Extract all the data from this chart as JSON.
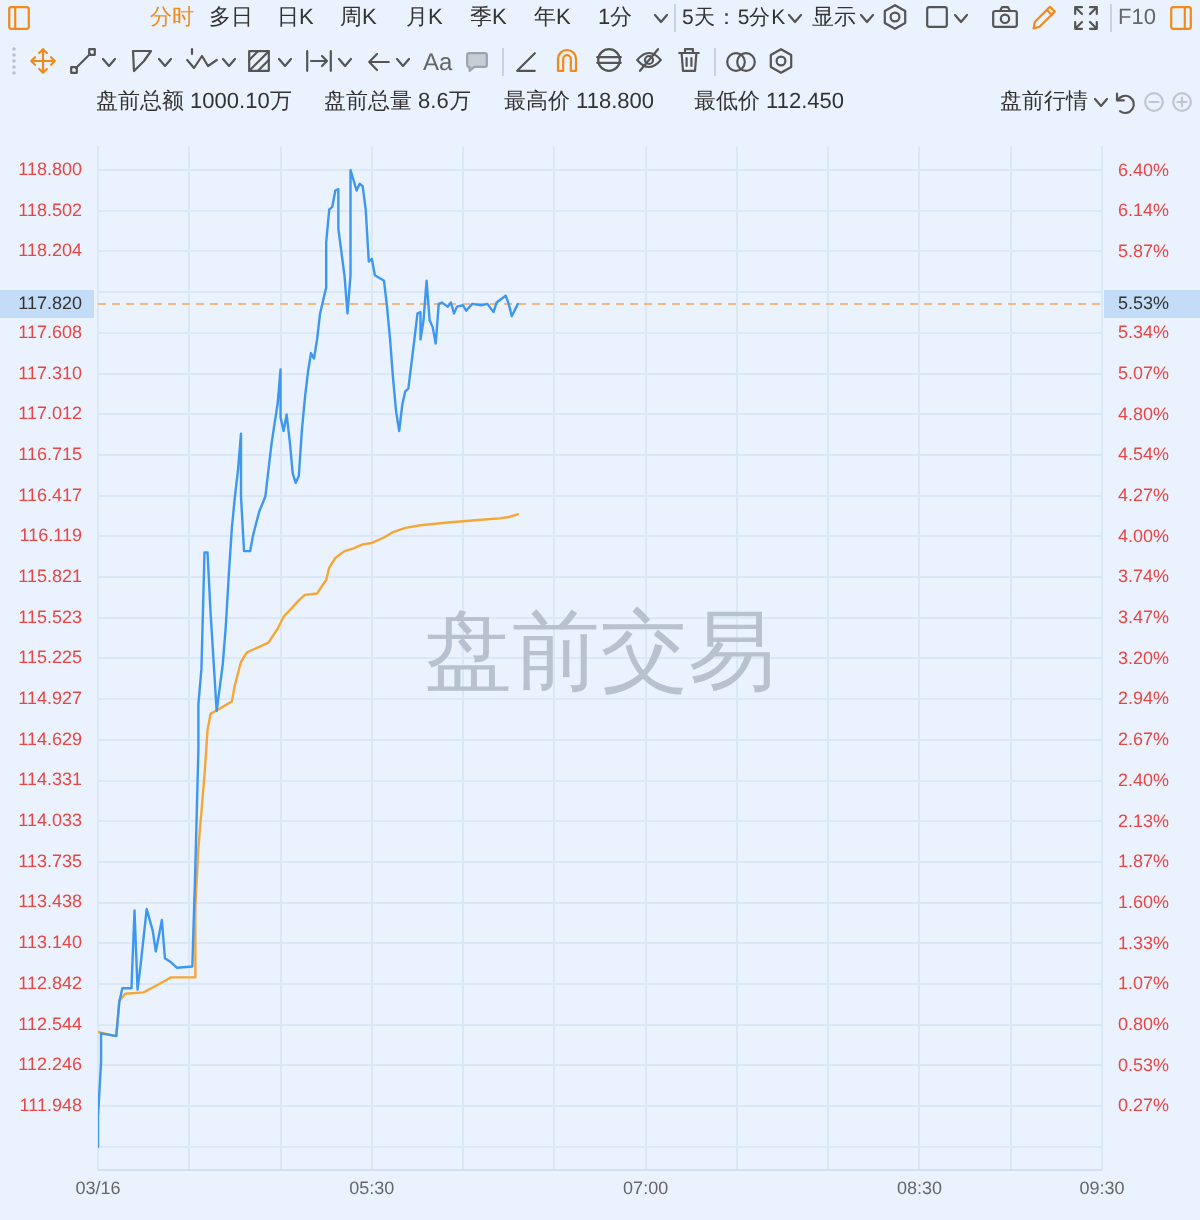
{
  "chart_data": {
    "type": "line",
    "annotations": [
      "分时",
      "多日",
      "日K",
      "周K",
      "月K",
      "季K",
      "年K",
      "1分",
      "5天：5分K",
      "显示",
      "F10",
      "Aa",
      "盘前总额 1000.10万",
      "盘前总量 8.6万",
      "最高价 118.800",
      "最低价 112.450",
      "盘前行情",
      "盘前交易",
      {
        "text": "5.53%",
        "x": "--03-16T09:30",
        "y": 117.82
      }
    ],
    "series": [
      {
        "color": "#3d97f0",
        "x": [
          "--03-16T04:00",
          "--03-16T04:00",
          "--03-16T04:01",
          "--03-16T04:01",
          "--03-16T04:06",
          "--03-16T04:07",
          "--03-16T04:08",
          "--03-16T04:11",
          "--03-16T04:12",
          "--03-16T04:13",
          "--03-16T04:14",
          "--03-16T04:16",
          "--03-16T04:18",
          "--03-16T04:19",
          "--03-16T04:21",
          "--03-16T04:22",
          "--03-16T04:24",
          "--03-16T04:26",
          "--03-16T04:31",
          "--03-16T04:32",
          "--03-16T04:33",
          "--03-16T04:33",
          "--03-16T04:34",
          "--03-16T04:35",
          "--03-16T04:36",
          "--03-16T04:37",
          "--03-16T04:39",
          "--03-16T04:41",
          "--03-16T04:42",
          "--03-16T04:43",
          "--03-16T04:44",
          "--03-16T04:45",
          "--03-16T04:46",
          "--03-16T04:47",
          "--03-16T04:47",
          "--03-16T04:48",
          "--03-16T04:50",
          "--03-16T04:51",
          "--03-16T04:53",
          "--03-16T04:55",
          "--03-16T04:56",
          "--03-16T04:57",
          "--03-16T04:58",
          "--03-16T04:59",
          "--03-16T05:00",
          "--03-16T05:00",
          "--03-16T05:01",
          "--03-16T05:02",
          "--03-16T05:03",
          "--03-16T05:04",
          "--03-16T05:05",
          "--03-16T05:06",
          "--03-16T05:07",
          "--03-16T05:08",
          "--03-16T05:09",
          "--03-16T05:10",
          "--03-16T05:11",
          "--03-16T05:12",
          "--03-16T05:13",
          "--03-16T05:15",
          "--03-16T05:15",
          "--03-16T05:16",
          "--03-16T05:17",
          "--03-16T05:18",
          "--03-16T05:19",
          "--03-16T05:19",
          "--03-16T05:21",
          "--03-16T05:22",
          "--03-16T05:23",
          "--03-16T05:23",
          "--03-16T05:25",
          "--03-16T05:26",
          "--03-16T05:27",
          "--03-16T05:28",
          "--03-16T05:29",
          "--03-16T05:30",
          "--03-16T05:31",
          "--03-16T05:34",
          "--03-16T05:35",
          "--03-16T05:36",
          "--03-16T05:37",
          "--03-16T05:38",
          "--03-16T05:39",
          "--03-16T05:40",
          "--03-16T05:41",
          "--03-16T05:42",
          "--03-16T05:44",
          "--03-16T05:45",
          "--03-16T05:46",
          "--03-16T05:46",
          "--03-16T05:47",
          "--03-16T05:48",
          "--03-16T05:49",
          "--03-16T05:50",
          "--03-16T05:51",
          "--03-16T05:52",
          "--03-16T05:53",
          "--03-16T05:55",
          "--03-16T05:56",
          "--03-16T05:57",
          "--03-16T05:58",
          "--03-16T06:00",
          "--03-16T06:01",
          "--03-16T06:03",
          "--03-16T06:06",
          "--03-16T06:08",
          "--03-16T06:10",
          "--03-16T06:11",
          "--03-16T06:14",
          "--03-16T06:15",
          "--03-16T06:16",
          "--03-16T06:18"
        ],
        "values": [
          111.65,
          111.87,
          112.27,
          112.48,
          112.46,
          112.71,
          112.81,
          112.81,
          113.38,
          112.8,
          112.98,
          113.39,
          113.23,
          113.08,
          113.31,
          113.03,
          113,
          112.96,
          112.97,
          113.7,
          114.56,
          114.89,
          115.15,
          116,
          116,
          115.56,
          114.84,
          115.18,
          115.46,
          115.84,
          116.18,
          116.41,
          116.6,
          116.87,
          116.41,
          116.01,
          116.01,
          116.13,
          116.3,
          116.41,
          116.6,
          116.79,
          116.94,
          117.08,
          117.34,
          116.99,
          116.89,
          117.01,
          116.82,
          116.58,
          116.51,
          116.56,
          116.89,
          117.13,
          117.32,
          117.46,
          117.42,
          117.56,
          117.75,
          117.94,
          118.27,
          118.51,
          118.53,
          118.65,
          118.66,
          118.37,
          118.03,
          117.75,
          118.03,
          118.8,
          118.65,
          118.7,
          118.68,
          118.51,
          118.13,
          118.15,
          118.03,
          117.99,
          117.8,
          117.56,
          117.27,
          117.03,
          116.89,
          117.08,
          117.18,
          117.2,
          117.56,
          117.75,
          117.76,
          117.56,
          117.7,
          117.99,
          117.7,
          117.65,
          117.53,
          117.82,
          117.83,
          117.8,
          117.83,
          117.75,
          117.8,
          117.81,
          117.77,
          117.82,
          117.81,
          117.82,
          117.76,
          117.83,
          117.88,
          117.82,
          117.73,
          117.82
        ]
      },
      {
        "color": "#f5a636",
        "x": [
          "--03-16T04:00",
          "--03-16T04:06",
          "--03-16T04:07",
          "--03-16T04:09",
          "--03-16T04:15",
          "--03-16T04:20",
          "--03-16T04:24",
          "--03-16T04:32",
          "--03-16T04:32",
          "--03-16T04:33",
          "--03-16T04:35",
          "--03-16T04:36",
          "--03-16T04:37",
          "--03-16T04:41",
          "--03-16T04:44",
          "--03-16T04:45",
          "--03-16T04:47",
          "--03-16T04:49",
          "--03-16T04:53",
          "--03-16T04:56",
          "--03-16T04:59",
          "--03-16T05:01",
          "--03-16T05:04",
          "--03-16T05:06",
          "--03-16T05:08",
          "--03-16T05:12",
          "--03-16T05:15",
          "--03-16T05:16",
          "--03-16T05:18",
          "--03-16T05:21",
          "--03-16T05:24",
          "--03-16T05:27",
          "--03-16T05:30",
          "--03-16T05:34",
          "--03-16T05:37",
          "--03-16T05:41",
          "--03-16T05:46",
          "--03-16T05:55",
          "--03-16T06:06",
          "--03-16T06:12",
          "--03-16T06:15",
          "--03-16T06:18"
        ],
        "values": [
          112.49,
          112.46,
          112.72,
          112.77,
          112.78,
          112.84,
          112.89,
          112.89,
          113.41,
          113.84,
          114.37,
          114.7,
          114.82,
          114.87,
          114.91,
          115.03,
          115.2,
          115.27,
          115.31,
          115.34,
          115.44,
          115.53,
          115.6,
          115.65,
          115.69,
          115.7,
          115.8,
          115.89,
          115.96,
          116.01,
          116.03,
          116.06,
          116.07,
          116.11,
          116.15,
          116.18,
          116.2,
          116.22,
          116.24,
          116.25,
          116.26,
          116.28
        ]
      }
    ],
    "xlim": [
      "--03-16T04:00",
      "--03-16T09:30"
    ],
    "xticks": [
      {
        "value": "--03-16T04:00",
        "label": "03/16"
      },
      {
        "value": "--03-16T04:30",
        "label": null
      },
      {
        "value": "--03-16T05:00",
        "label": null
      },
      {
        "value": "--03-16T05:30",
        "label": "05:30"
      },
      {
        "value": "--03-16T06:00",
        "label": null
      },
      {
        "value": "--03-16T06:30",
        "label": null
      },
      {
        "value": "--03-16T07:00",
        "label": "07:00"
      },
      {
        "value": "--03-16T07:30",
        "label": null
      },
      {
        "value": "--03-16T08:00",
        "label": null
      },
      {
        "value": "--03-16T08:30",
        "label": "08:30"
      },
      {
        "value": "--03-16T09:00",
        "label": null
      },
      {
        "value": "--03-16T09:30",
        "label": "09:30"
      }
    ],
    "ylim": [
      111.48,
      118.97
    ],
    "yticks": [
      {
        "value": 111.65,
        "label": null
      },
      111.948,
      112.246,
      112.544,
      112.842,
      {
        "value": 113.14,
        "label": "113.140"
      },
      113.438,
      113.735,
      114.033,
      114.331,
      114.629,
      114.927,
      115.225,
      115.523,
      115.821,
      116.119,
      116.417,
      116.715,
      117.012,
      {
        "value": 117.31,
        "label": "117.310"
      },
      117.608,
      {
        "value": 117.906,
        "label": null
      },
      118.204,
      118.502,
      {
        "value": 118.8,
        "label": "118.800"
      }
    ],
    "y2lim": [
      -0.15,
      6.56
    ],
    "y2ticks": [
      {
        "value": 0.27,
        "label": "0.27%"
      },
      {
        "value": 0.53,
        "label": "0.53%"
      },
      {
        "value": 0.8,
        "label": "0.80%"
      },
      {
        "value": 1.07,
        "label": "1.07%"
      },
      {
        "value": 1.33,
        "label": "1.33%"
      },
      {
        "value": 1.6,
        "label": "1.60%"
      },
      {
        "value": 1.87,
        "label": "1.87%"
      },
      {
        "value": 2.13,
        "label": "2.13%"
      },
      {
        "value": 2.4,
        "label": "2.40%"
      },
      {
        "value": 2.67,
        "label": "2.67%"
      },
      {
        "value": 2.94,
        "label": "2.94%"
      },
      {
        "value": 3.2,
        "label": "3.20%"
      },
      {
        "value": 3.47,
        "label": "3.47%"
      },
      {
        "value": 3.74,
        "label": "3.74%"
      },
      {
        "value": 4,
        "label": "4.00%"
      },
      {
        "value": 4.27,
        "label": "4.27%"
      },
      {
        "value": 4.54,
        "label": "4.54%"
      },
      {
        "value": 4.8,
        "label": "4.80%"
      },
      {
        "value": 5.07,
        "label": "5.07%"
      },
      {
        "value": 5.34,
        "label": "5.34%"
      },
      {
        "value": 5.6,
        "label": null
      },
      {
        "value": 5.87,
        "label": "5.87%"
      },
      {
        "value": 6.14,
        "label": "6.14%"
      },
      {
        "value": 6.4,
        "label": "6.40%"
      }
    ],
    "ref_lines": [
      {
        "axis": "y",
        "value": 117.82,
        "label": "117.820",
        "color": "#f0b983",
        "line_style": "dashed"
      }
    ],
    "grid": true
  }
}
